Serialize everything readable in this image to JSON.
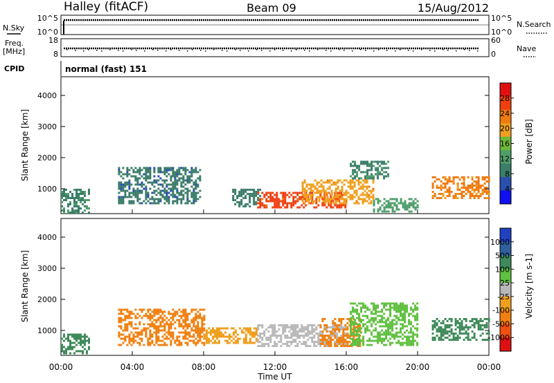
{
  "header": {
    "station": "Halley (fitACF)",
    "beam": "Beam 09",
    "date": "15/Aug/2012"
  },
  "side_labels": {
    "nsky": "N.Sky",
    "nsearch": "N.Search",
    "freq_line1": "Freq.",
    "freq_line2": "[MHz]",
    "nave": "Nave",
    "cpid": "CPID"
  },
  "cpid_text": "normal (fast) 151",
  "colors": {
    "power_scale": [
      "#1010f0",
      "#2a4fb0",
      "#3c7d6a",
      "#4f9e6a",
      "#6fb83a",
      "#f0a020",
      "#f07a10",
      "#f04010",
      "#e01010"
    ],
    "velocity_scale": [
      "#2040c0",
      "#2f60a0",
      "#3f8a5a",
      "#60c040",
      "#b8b8b8",
      "#f0a020",
      "#f08010",
      "#f05010",
      "#e01010"
    ]
  },
  "chart_data": [
    {
      "type": "line",
      "title": "N.Sky / N.Search",
      "y_tick_labels_left": [
        "10^5",
        "10^0"
      ],
      "y_tick_labels_right": [
        "10^5",
        "10^0"
      ],
      "series": [
        {
          "name": "N.Sky",
          "values": [
            100000,
            100000,
            100000,
            100000,
            100000,
            100000,
            100000,
            100000,
            100000,
            100000,
            100000,
            100000,
            100000
          ]
        }
      ],
      "x": [
        "00:00",
        "02:00",
        "04:00",
        "06:00",
        "08:00",
        "10:00",
        "12:00",
        "14:00",
        "16:00",
        "18:00",
        "20:00",
        "22:00",
        "00:00"
      ]
    },
    {
      "type": "scatter",
      "title": "Freq. / Nave",
      "y_tick_labels_left": [
        "18",
        "8"
      ],
      "y_tick_labels_right": [
        "60",
        "0"
      ],
      "series": [
        {
          "name": "Freq.",
          "values": [
            11.5,
            11.5,
            11.5,
            11.5,
            11.5,
            11.5,
            11.5,
            11.5,
            11.5,
            11.5,
            11.5,
            11.5,
            11.5
          ]
        }
      ],
      "x": [
        "00:00",
        "02:00",
        "04:00",
        "06:00",
        "08:00",
        "10:00",
        "12:00",
        "14:00",
        "16:00",
        "18:00",
        "20:00",
        "22:00",
        "00:00"
      ]
    },
    {
      "type": "heatmap",
      "ylabel": "Slant Range [km]",
      "xlabel": "Time UT",
      "x_tick_labels": [
        "00:00",
        "04:00",
        "08:00",
        "12:00",
        "16:00",
        "20:00",
        "00:00"
      ],
      "y_tick_labels": [
        "1000",
        "2000",
        "3000",
        "4000"
      ],
      "ylim": [
        200,
        4600
      ],
      "colorbar_label": "Power [dB]",
      "colorbar_ticks": [
        "4",
        "8",
        "12",
        "16",
        "20",
        "24",
        "28"
      ],
      "colorbar_range": [
        0,
        32
      ],
      "regions": [
        {
          "t0": 0.0,
          "t1": 1.6,
          "r0": 250,
          "r1": 1000,
          "value": 10
        },
        {
          "t0": 3.2,
          "t1": 7.8,
          "r0": 500,
          "r1": 1700,
          "value": 8
        },
        {
          "t0": 9.6,
          "t1": 11.2,
          "r0": 400,
          "r1": 1000,
          "value": 9
        },
        {
          "t0": 11.0,
          "t1": 16.0,
          "r0": 400,
          "r1": 900,
          "value": 26
        },
        {
          "t0": 13.5,
          "t1": 17.5,
          "r0": 500,
          "r1": 1300,
          "value": 20
        },
        {
          "t0": 16.2,
          "t1": 18.4,
          "r0": 1300,
          "r1": 1900,
          "value": 10
        },
        {
          "t0": 17.5,
          "t1": 20.0,
          "r0": 250,
          "r1": 700,
          "value": 12
        },
        {
          "t0": 20.8,
          "t1": 24.0,
          "r0": 700,
          "r1": 1400,
          "value": 22
        }
      ]
    },
    {
      "type": "heatmap",
      "ylabel": "Slant Range [km]",
      "xlabel": "Time UT",
      "x_tick_labels": [
        "00:00",
        "04:00",
        "08:00",
        "12:00",
        "16:00",
        "20:00",
        "00:00"
      ],
      "y_tick_labels": [
        "1000",
        "2000",
        "3000",
        "4000"
      ],
      "ylim": [
        200,
        4600
      ],
      "colorbar_label": "Velocity [m s-1]",
      "colorbar_ticks": [
        "1000",
        "500",
        "100",
        "25",
        "-25",
        "-100",
        "-500",
        "-1000"
      ],
      "regions": [
        {
          "t0": 0.0,
          "t1": 1.6,
          "r0": 250,
          "r1": 900,
          "value": 100
        },
        {
          "t0": 3.2,
          "t1": 8.0,
          "r0": 500,
          "r1": 1700,
          "value": -300
        },
        {
          "t0": 8.0,
          "t1": 11.0,
          "r0": 600,
          "r1": 1100,
          "value": -50
        },
        {
          "t0": 11.0,
          "t1": 16.0,
          "r0": 500,
          "r1": 1200,
          "value": 0
        },
        {
          "t0": 14.5,
          "t1": 16.8,
          "r0": 500,
          "r1": 1400,
          "value": -150
        },
        {
          "t0": 16.2,
          "t1": 20.0,
          "r0": 500,
          "r1": 1900,
          "value": 60
        },
        {
          "t0": 20.8,
          "t1": 24.0,
          "r0": 700,
          "r1": 1400,
          "value": 120
        }
      ]
    }
  ]
}
